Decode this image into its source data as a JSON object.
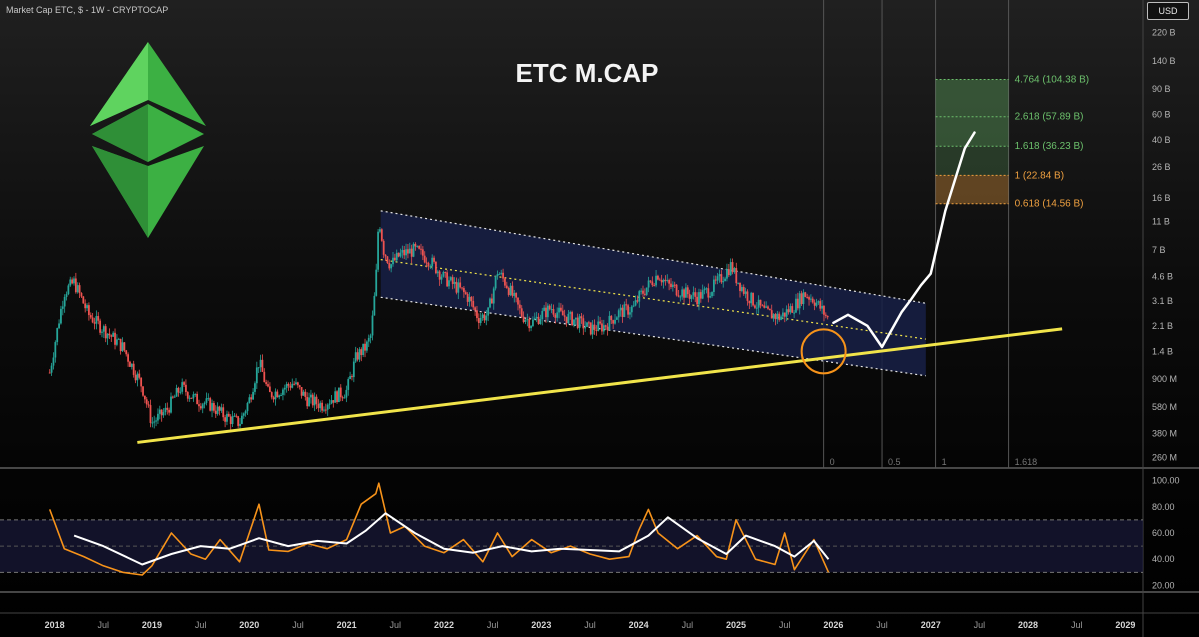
{
  "header": {
    "text": "Market Cap ETC, $ - 1W - CRYPTOCAP",
    "currency": "USD"
  },
  "colors": {
    "up": "#26a69a",
    "down": "#ef5350",
    "channel_fill": "#182046",
    "trendline": "#f1e44a",
    "rsi": "#f7931a",
    "rsi_ma": "#ffffff",
    "fib_green": "#6cc06c",
    "fib_orange": "#f0a140",
    "circle": "#f7931a",
    "logo": "#3cb043"
  },
  "chart_data": [
    {
      "type": "candlestick",
      "title": "ETC M.CAP",
      "y_scale": "log",
      "y_ticks": [
        "220 B",
        "140 B",
        "90 B",
        "60 B",
        "40 B",
        "26 B",
        "16 B",
        "11 B",
        "7 B",
        "4.6 B",
        "3.1 B",
        "2.1 B",
        "1.4 B",
        "900 M",
        "580 M",
        "380 M",
        "260 M"
      ],
      "x_ticks": [
        "2018",
        "Jul",
        "2019",
        "Jul",
        "2020",
        "Jul",
        "2021",
        "Jul",
        "2022",
        "Jul",
        "2023",
        "Jul",
        "2024",
        "Jul",
        "2025",
        "Jul",
        "2026",
        "Jul",
        "2027",
        "Jul",
        "2028",
        "Jul",
        "2029"
      ],
      "x_range": [
        2017.85,
        2029.15
      ],
      "ylim_usd": [
        220000000.0,
        260000000000.0
      ],
      "series": [
        {
          "name": "price",
          "x": [
            2017.95,
            2018.05,
            2018.1,
            2018.2,
            2018.35,
            2018.5,
            2018.7,
            2018.9,
            2019.0,
            2019.15,
            2019.3,
            2019.45,
            2019.6,
            2019.75,
            2019.9,
            2020.0,
            2020.1,
            2020.2,
            2020.3,
            2020.45,
            2020.6,
            2020.75,
            2020.9,
            2021.0,
            2021.1,
            2021.2,
            2021.25,
            2021.3,
            2021.33,
            2021.38,
            2021.45,
            2021.55,
            2021.7,
            2021.85,
            2022.0,
            2022.15,
            2022.25,
            2022.35,
            2022.45,
            2022.55,
            2022.65,
            2022.8,
            2022.9,
            2023.0,
            2023.1,
            2023.2,
            2023.35,
            2023.5,
            2023.65,
            2023.8,
            2023.95,
            2024.0,
            2024.1,
            2024.2,
            2024.3,
            2024.45,
            2024.6,
            2024.75,
            2024.85,
            2024.95,
            2025.0,
            2025.1,
            2025.2,
            2025.3,
            2025.45,
            2025.6,
            2025.7,
            2025.8,
            2025.9,
            2025.95
          ],
          "y": [
            1000000000.0,
            2400000000.0,
            3600000000.0,
            4200000000.0,
            2500000000.0,
            2000000000.0,
            1500000000.0,
            800000000.0,
            450000000.0,
            550000000.0,
            800000000.0,
            650000000.0,
            600000000.0,
            500000000.0,
            450000000.0,
            650000000.0,
            1200000000.0,
            700000000.0,
            750000000.0,
            850000000.0,
            650000000.0,
            600000000.0,
            700000000.0,
            750000000.0,
            1300000000.0,
            1500000000.0,
            1800000000.0,
            4200000000.0,
            12000000000.0,
            7000000000.0,
            5500000000.0,
            6500000000.0,
            7000000000.0,
            6000000000.0,
            4500000000.0,
            3800000000.0,
            3300000000.0,
            2400000000.0,
            2500000000.0,
            5000000000.0,
            4000000000.0,
            2500000000.0,
            2200000000.0,
            2500000000.0,
            2800000000.0,
            2500000000.0,
            2300000000.0,
            2000000000.0,
            2100000000.0,
            2600000000.0,
            2800000000.0,
            3300000000.0,
            4000000000.0,
            4800000000.0,
            4000000000.0,
            3600000000.0,
            3300000000.0,
            3800000000.0,
            4500000000.0,
            5500000000.0,
            4500000000.0,
            3500000000.0,
            3000000000.0,
            2600000000.0,
            2400000000.0,
            2900000000.0,
            3500000000.0,
            3200000000.0,
            2600000000.0,
            2300000000.0
          ]
        },
        {
          "name": "projection",
          "x": [
            2026.0,
            2026.15,
            2026.35,
            2026.5,
            2026.7,
            2026.8,
            2026.9,
            2027.0,
            2027.15,
            2027.35,
            2027.45
          ],
          "y": [
            2200000000.0,
            2500000000.0,
            2100000000.0,
            1500000000.0,
            2600000000.0,
            3200000000.0,
            4000000000.0,
            4800000000.0,
            13000000000.0,
            35000000000.0,
            45000000000.0
          ]
        }
      ],
      "channel": {
        "upper": [
          [
            2021.35,
            13000000000.0
          ],
          [
            2026.95,
            3000000000.0
          ]
        ],
        "mid": [
          [
            2021.35,
            6000000000.0
          ],
          [
            2026.95,
            1700000000.0
          ]
        ],
        "lower": [
          [
            2021.35,
            3300000000.0
          ],
          [
            2026.95,
            950000000.0
          ]
        ]
      },
      "trendline": [
        [
          2018.85,
          330000000.0
        ],
        [
          2028.35,
          2000000000.0
        ]
      ],
      "fib_levels": [
        {
          "ratio": "4.764",
          "value": "104.38 B",
          "label": "4.764 (104.38 B)"
        },
        {
          "ratio": "2.618",
          "value": "57.89 B",
          "label": "2.618 (57.89 B)"
        },
        {
          "ratio": "1.618",
          "value": "36.23 B",
          "label": "1.618 (36.23 B)"
        },
        {
          "ratio": "1",
          "value": "22.84 B",
          "label": "1 (22.84 B)"
        },
        {
          "ratio": "0.618",
          "value": "14.56 B",
          "label": "0.618 (14.56 B)"
        }
      ],
      "time_fib": [
        {
          "label": "0",
          "x": 2025.9
        },
        {
          "label": "0.5",
          "x": 2026.5
        },
        {
          "label": "1",
          "x": 2027.05
        },
        {
          "label": "1.618",
          "x": 2027.8
        }
      ],
      "circle_center": [
        2025.9,
        1400000000.0
      ]
    },
    {
      "type": "line",
      "name": "RSI",
      "ylim": [
        15,
        105
      ],
      "y_ticks": [
        "100.00",
        "80.00",
        "60.00",
        "40.00",
        "20.00"
      ],
      "band": [
        30,
        70
      ],
      "series": [
        {
          "name": "rsi",
          "x": [
            2017.95,
            2018.1,
            2018.3,
            2018.5,
            2018.7,
            2018.9,
            2019.0,
            2019.2,
            2019.4,
            2019.55,
            2019.7,
            2019.9,
            2020.1,
            2020.2,
            2020.4,
            2020.6,
            2020.8,
            2021.0,
            2021.15,
            2021.3,
            2021.33,
            2021.45,
            2021.6,
            2021.8,
            2022.0,
            2022.2,
            2022.4,
            2022.55,
            2022.7,
            2022.9,
            2023.1,
            2023.3,
            2023.5,
            2023.7,
            2023.9,
            2024.0,
            2024.1,
            2024.2,
            2024.4,
            2024.6,
            2024.8,
            2024.9,
            2025.0,
            2025.2,
            2025.4,
            2025.5,
            2025.6,
            2025.8,
            2025.95
          ],
          "y": [
            78,
            48,
            42,
            35,
            30,
            28,
            35,
            60,
            44,
            40,
            55,
            38,
            82,
            47,
            46,
            52,
            48,
            55,
            82,
            90,
            98,
            60,
            65,
            50,
            45,
            55,
            38,
            60,
            42,
            55,
            45,
            50,
            44,
            40,
            42,
            62,
            78,
            60,
            48,
            58,
            42,
            40,
            70,
            40,
            36,
            60,
            32,
            55,
            30
          ]
        },
        {
          "name": "rsi_ma",
          "x": [
            2018.2,
            2018.5,
            2018.9,
            2019.2,
            2019.5,
            2019.8,
            2020.1,
            2020.4,
            2020.7,
            2021.0,
            2021.2,
            2021.4,
            2021.7,
            2022.0,
            2022.3,
            2022.6,
            2022.9,
            2023.2,
            2023.5,
            2023.8,
            2024.1,
            2024.3,
            2024.6,
            2024.9,
            2025.1,
            2025.4,
            2025.6,
            2025.8,
            2025.95
          ],
          "y": [
            58,
            50,
            36,
            44,
            50,
            48,
            56,
            50,
            54,
            52,
            62,
            75,
            60,
            48,
            45,
            50,
            46,
            48,
            47,
            46,
            58,
            72,
            56,
            44,
            58,
            50,
            42,
            54,
            40
          ]
        }
      ]
    }
  ]
}
